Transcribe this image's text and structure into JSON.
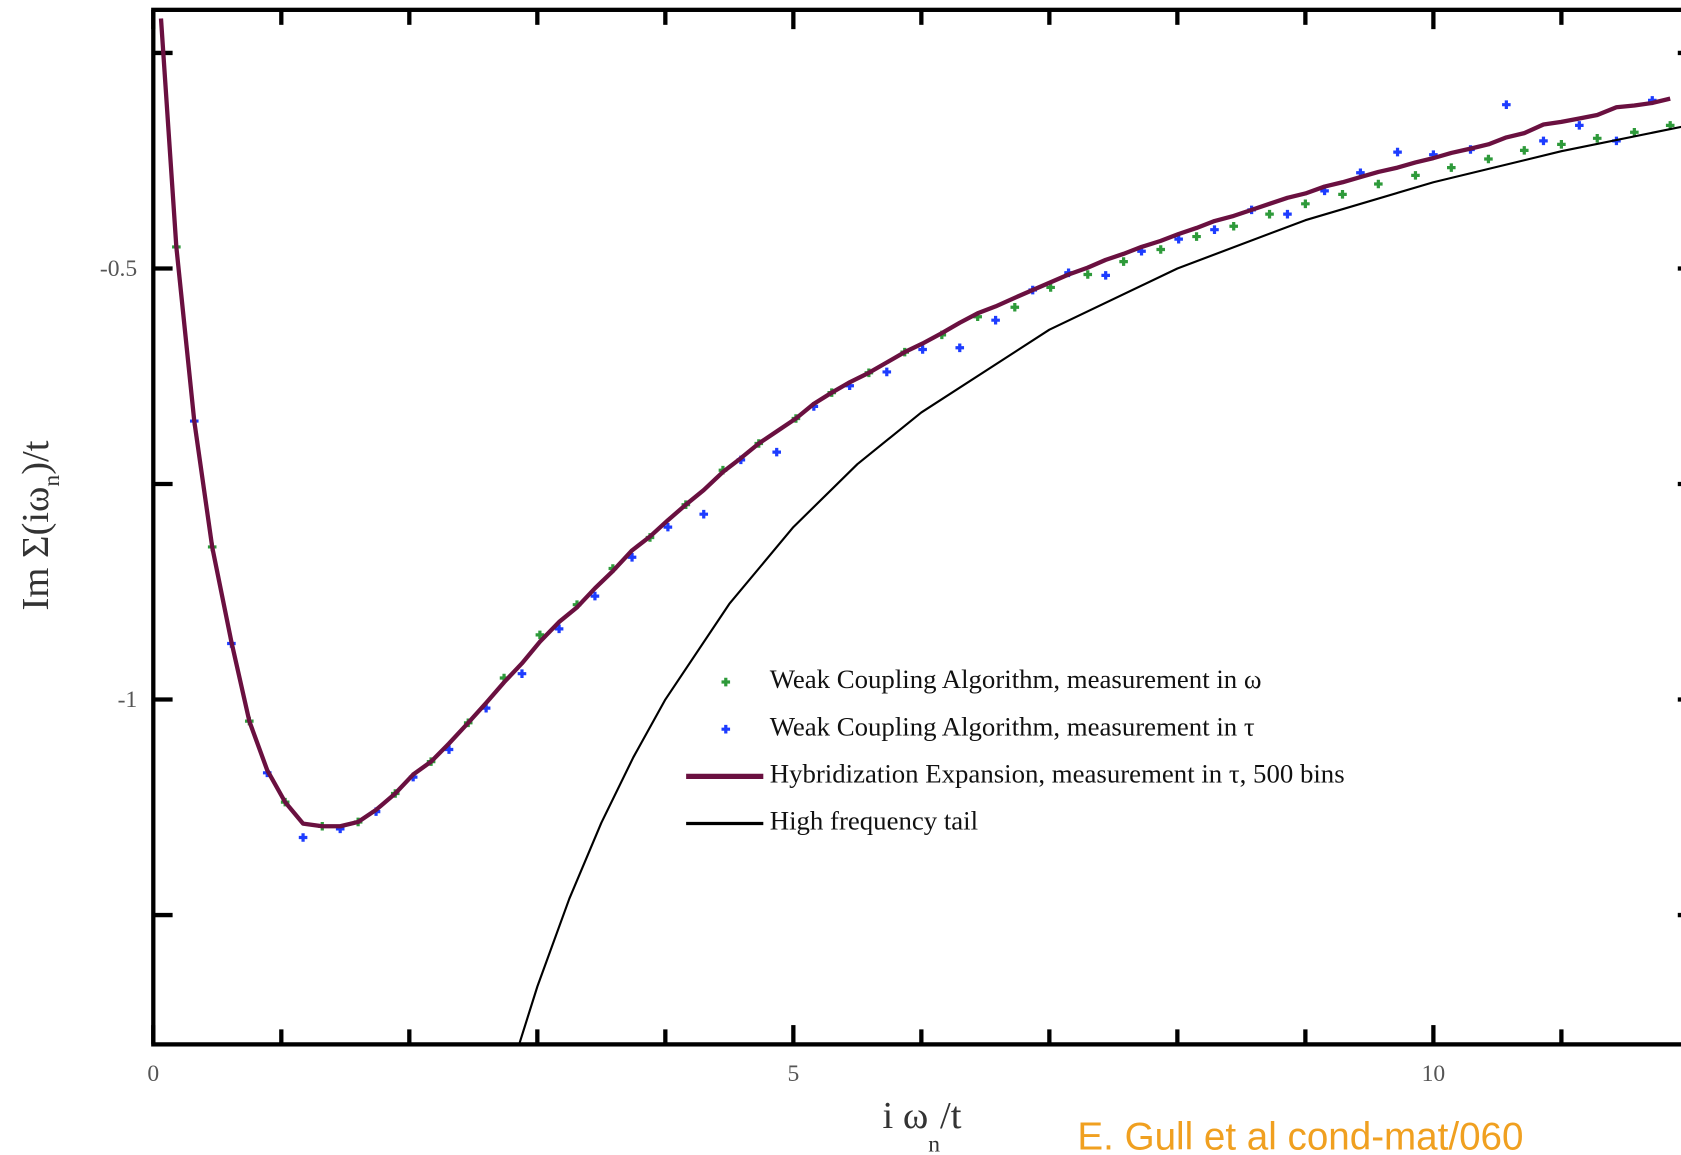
{
  "chart_data": {
    "type": "line",
    "x_label": {
      "main": "i ω",
      "sub": "n",
      "end": "/t"
    },
    "y_label": {
      "main": "Im Σ(iω",
      "sub": "n",
      "end": ")/t"
    },
    "citation": "E. Gull et al cond-mat/060",
    "xlim": [
      0,
      12.06
    ],
    "ylim": [
      -1.4,
      -0.2
    ],
    "xticks": [
      0,
      5,
      10
    ],
    "xticks_minor": [
      1,
      2,
      3,
      4,
      6,
      7,
      8,
      9,
      11,
      12
    ],
    "yticks": [
      -0.5,
      -1
    ],
    "yticks_minor": [
      -0.25,
      -0.75,
      -1.25
    ],
    "legend": "center-right",
    "series": [
      {
        "name": "Weak Coupling Algorithm, measurement in ω",
        "color": "#2e9a3a",
        "style": "plus",
        "x": [
          0.18,
          0.46,
          0.75,
          1.03,
          1.32,
          1.6,
          1.89,
          2.17,
          2.46,
          2.74,
          3.02,
          3.31,
          3.59,
          3.88,
          4.16,
          4.45,
          4.73,
          5.02,
          5.3,
          5.59,
          5.87,
          6.16,
          6.44,
          6.73,
          7.01,
          7.3,
          7.58,
          7.87,
          8.15,
          8.44,
          8.72,
          9.0,
          9.29,
          9.57,
          9.86,
          10.14,
          10.43,
          10.71,
          11.0,
          11.28,
          11.57,
          11.85
        ],
        "values": [
          -0.475,
          -0.823,
          -1.025,
          -1.119,
          -1.147,
          -1.142,
          -1.109,
          -1.072,
          -1.027,
          -0.975,
          -0.925,
          -0.89,
          -0.848,
          -0.812,
          -0.774,
          -0.734,
          -0.703,
          -0.674,
          -0.644,
          -0.621,
          -0.597,
          -0.577,
          -0.556,
          -0.545,
          -0.522,
          -0.507,
          -0.492,
          -0.478,
          -0.463,
          -0.451,
          -0.437,
          -0.425,
          -0.414,
          -0.402,
          -0.392,
          -0.383,
          -0.373,
          -0.363,
          -0.356,
          -0.349,
          -0.342,
          -0.334
        ]
      },
      {
        "name": "Weak Coupling Algorithm, measurement in τ",
        "color": "#1d3cff",
        "style": "plus",
        "x": [
          0.32,
          0.61,
          0.89,
          1.17,
          1.46,
          1.74,
          2.03,
          2.31,
          2.6,
          2.88,
          3.17,
          3.45,
          3.74,
          4.02,
          4.3,
          4.59,
          4.87,
          5.16,
          5.44,
          5.73,
          6.01,
          6.3,
          6.58,
          6.87,
          7.15,
          7.44,
          7.72,
          8.01,
          8.29,
          8.58,
          8.86,
          9.15,
          9.43,
          9.72,
          10.0,
          10.29,
          10.57,
          10.86,
          11.14,
          11.43,
          11.71
        ],
        "values": [
          -0.677,
          -0.935,
          -1.085,
          -1.16,
          -1.15,
          -1.13,
          -1.09,
          -1.058,
          -1.01,
          -0.97,
          -0.918,
          -0.88,
          -0.835,
          -0.8,
          -0.785,
          -0.722,
          -0.713,
          -0.66,
          -0.636,
          -0.62,
          -0.594,
          -0.592,
          -0.56,
          -0.525,
          -0.505,
          -0.508,
          -0.48,
          -0.466,
          -0.455,
          -0.432,
          -0.437,
          -0.41,
          -0.389,
          -0.365,
          -0.368,
          -0.362,
          -0.31,
          -0.352,
          -0.334,
          -0.352,
          -0.305
        ]
      },
      {
        "name": "Hybridization Expansion, measurement in τ, 500 bins",
        "color": "#6a1040",
        "style": "line",
        "x": [
          0.06,
          0.18,
          0.32,
          0.46,
          0.61,
          0.75,
          0.89,
          1.03,
          1.17,
          1.32,
          1.46,
          1.6,
          1.74,
          1.89,
          2.03,
          2.17,
          2.31,
          2.46,
          2.6,
          2.74,
          2.88,
          3.02,
          3.17,
          3.31,
          3.45,
          3.59,
          3.74,
          3.88,
          4.02,
          4.16,
          4.3,
          4.45,
          4.59,
          4.73,
          4.87,
          5.02,
          5.16,
          5.3,
          5.44,
          5.59,
          5.73,
          5.87,
          6.01,
          6.16,
          6.3,
          6.44,
          6.58,
          6.73,
          6.87,
          7.01,
          7.15,
          7.3,
          7.44,
          7.58,
          7.72,
          7.87,
          8.01,
          8.15,
          8.29,
          8.44,
          8.58,
          8.72,
          8.86,
          9.0,
          9.15,
          9.29,
          9.43,
          9.57,
          9.72,
          9.86,
          10.0,
          10.14,
          10.29,
          10.43,
          10.57,
          10.71,
          10.86,
          11.0,
          11.14,
          11.28,
          11.43,
          11.57,
          11.71,
          11.85
        ],
        "values": [
          -0.21,
          -0.475,
          -0.677,
          -0.823,
          -0.933,
          -1.025,
          -1.082,
          -1.119,
          -1.144,
          -1.147,
          -1.147,
          -1.142,
          -1.128,
          -1.109,
          -1.087,
          -1.072,
          -1.051,
          -1.027,
          -1.004,
          -0.98,
          -0.958,
          -0.933,
          -0.91,
          -0.893,
          -0.871,
          -0.851,
          -0.827,
          -0.811,
          -0.792,
          -0.774,
          -0.757,
          -0.736,
          -0.72,
          -0.703,
          -0.689,
          -0.674,
          -0.657,
          -0.644,
          -0.632,
          -0.621,
          -0.609,
          -0.597,
          -0.587,
          -0.575,
          -0.563,
          -0.552,
          -0.544,
          -0.534,
          -0.525,
          -0.516,
          -0.507,
          -0.499,
          -0.49,
          -0.483,
          -0.475,
          -0.468,
          -0.46,
          -0.453,
          -0.445,
          -0.439,
          -0.432,
          -0.425,
          -0.418,
          -0.413,
          -0.405,
          -0.4,
          -0.394,
          -0.388,
          -0.383,
          -0.377,
          -0.372,
          -0.366,
          -0.361,
          -0.356,
          -0.348,
          -0.343,
          -0.333,
          -0.33,
          -0.326,
          -0.322,
          -0.313,
          -0.311,
          -0.308,
          -0.303
        ]
      },
      {
        "name": "High frequency tail",
        "color": "#000000",
        "style": "thin-line",
        "x": [
          2.86,
          3.0,
          3.25,
          3.5,
          3.75,
          4.0,
          4.5,
          5.0,
          5.5,
          6.0,
          7.0,
          8.0,
          9.0,
          10.0,
          11.0,
          12.06
        ],
        "values": [
          -1.399,
          -1.333,
          -1.231,
          -1.143,
          -1.067,
          -1.0,
          -0.889,
          -0.8,
          -0.727,
          -0.667,
          -0.571,
          -0.5,
          -0.444,
          -0.4,
          -0.364,
          -0.332
        ]
      }
    ]
  }
}
